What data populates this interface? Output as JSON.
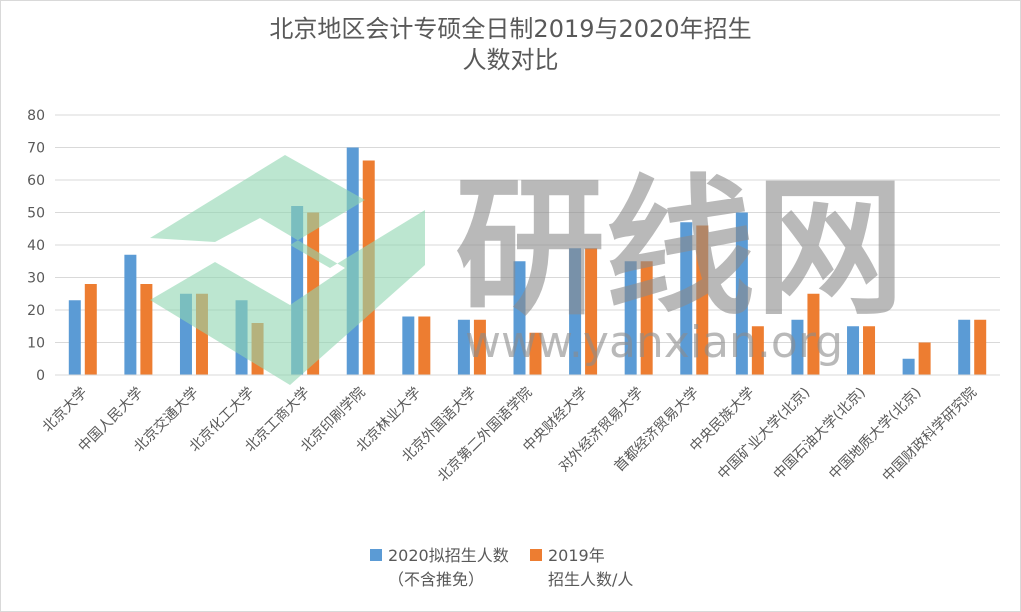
{
  "chart_data": {
    "type": "bar",
    "title_line1": "北京地区会计专硕全日制2019与2020年招生",
    "title_line2": "人数对比",
    "categories": [
      "北京大学",
      "中国人民大学",
      "北京交通大学",
      "北京化工大学",
      "北京工商大学",
      "北京印刷学院",
      "北京林业大学",
      "北京外国语大学",
      "北京第二外国语学院",
      "中央财经大学",
      "对外经济贸易大学",
      "首都经济贸易大学",
      "中央民族大学",
      "中国矿业大学(北京)",
      "中国石油大学(北京)",
      "中国地质大学(北京)",
      "中国财政科学研究院"
    ],
    "series": [
      {
        "name": "2020拟招生人数",
        "name_line2": "（不含推免）",
        "color": "#5b9bd5",
        "values": [
          23,
          37,
          25,
          23,
          52,
          70,
          18,
          17,
          35,
          39,
          35,
          47,
          50,
          17,
          15,
          5,
          17
        ]
      },
      {
        "name": "2019年",
        "name_line2": "招生人数/人",
        "color": "#ed7d31",
        "values": [
          28,
          28,
          25,
          16,
          50,
          66,
          18,
          17,
          13,
          39,
          35,
          46,
          15,
          25,
          15,
          10,
          17
        ]
      }
    ],
    "ylim": [
      0,
      80
    ],
    "yticks": [
      0,
      10,
      20,
      30,
      40,
      50,
      60,
      70,
      80
    ],
    "grid": true,
    "legend_position": "bottom"
  },
  "watermark": {
    "name": "研线网",
    "url": "www.yanxian.org",
    "logo_color": "#8fd6b0"
  }
}
